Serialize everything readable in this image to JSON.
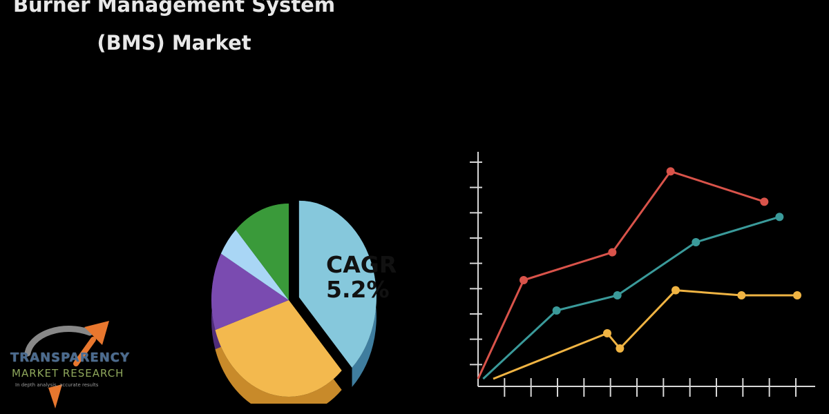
{
  "header": {
    "title_line1": "Burner Management System",
    "title_line2": "(BMS) Market"
  },
  "colors": {
    "background": "#000000",
    "series_red": "#d9534a",
    "series_teal": "#3a9a9a",
    "series_yellow": "#f0b443",
    "axis": "#d8d8d8"
  },
  "logo": {
    "name": "TRANSPARENCY",
    "sub": "MARKET RESEARCH",
    "tagline": "In depth analysis, accurate results"
  },
  "chart_data": [
    {
      "type": "pie",
      "annotation_line1": "CAGR",
      "annotation_line2": "5.2%",
      "slices": [
        {
          "value": 38,
          "color": "#86c8dc",
          "side_color": "#3f7d9e",
          "exploded": true
        },
        {
          "value": 32,
          "color": "#f3b94e",
          "side_color": "#c88a2a",
          "exploded": false
        },
        {
          "value": 13,
          "color": "#7a4bb0",
          "side_color": "#4f2d7a",
          "exploded": false
        },
        {
          "value": 5,
          "color": "#a9d6f5",
          "side_color": "#6f9fc2",
          "exploded": false
        },
        {
          "value": 12,
          "color": "#3a9a3a",
          "side_color": "#256b25",
          "exploded": false
        }
      ]
    },
    {
      "type": "line",
      "x": [
        0,
        1,
        2,
        3,
        4,
        5,
        6,
        7,
        8,
        9,
        10,
        11,
        12
      ],
      "xlim": [
        0,
        12
      ],
      "ylim": [
        0,
        9
      ],
      "y_ticks": 9,
      "x_ticks": 12,
      "grid": false,
      "series": [
        {
          "color": "#d9534a",
          "points": [
            [
              0,
              0.3
            ],
            [
              1.8,
              4.2
            ],
            [
              5.3,
              5.3
            ],
            [
              7.6,
              8.5
            ],
            [
              11.3,
              7.3
            ]
          ]
        },
        {
          "color": "#3a9a9a",
          "points": [
            [
              0.2,
              0.3
            ],
            [
              3.1,
              3.0
            ],
            [
              5.5,
              3.6
            ],
            [
              8.6,
              5.7
            ],
            [
              11.9,
              6.7
            ]
          ]
        },
        {
          "color": "#f0b443",
          "points": [
            [
              0.6,
              0.3
            ],
            [
              5.1,
              2.1
            ],
            [
              5.6,
              1.5
            ],
            [
              7.8,
              3.8
            ],
            [
              10.4,
              3.6
            ],
            [
              12.6,
              3.6
            ]
          ]
        }
      ]
    }
  ]
}
